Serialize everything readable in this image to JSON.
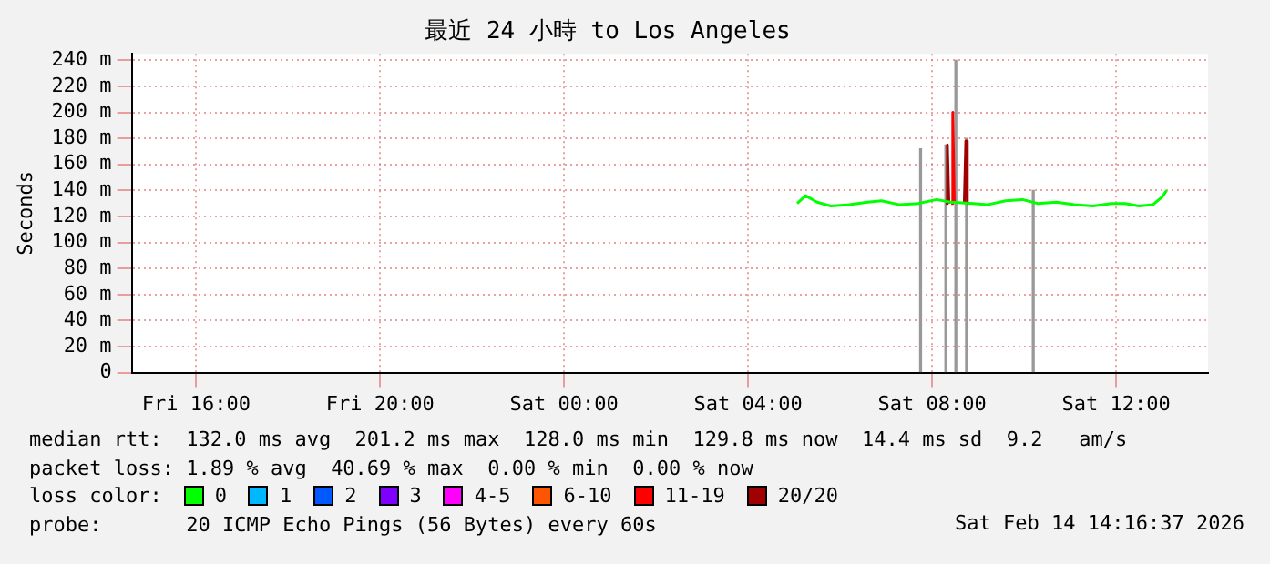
{
  "chart_data": {
    "type": "line",
    "title": "最近 24 小時 to Los Angeles",
    "ylabel": "Seconds",
    "legend_title": "loss color:",
    "xlim": [
      "2026-02-13T14:36",
      "2026-02-14T14:00"
    ],
    "xticks": [
      {
        "value": "2026-02-13T16:00",
        "label": "Fri 16:00"
      },
      {
        "value": "2026-02-13T20:00",
        "label": "Fri 20:00"
      },
      {
        "value": "2026-02-14T00:00",
        "label": "Sat 00:00"
      },
      {
        "value": "2026-02-14T04:00",
        "label": "Sat 04:00"
      },
      {
        "value": "2026-02-14T08:00",
        "label": "Sat 08:00"
      },
      {
        "value": "2026-02-14T12:00",
        "label": "Sat 12:00"
      }
    ],
    "ylim": [
      0,
      245
    ],
    "yticks": [
      0,
      {
        "value": 20,
        "label": "20 m"
      },
      {
        "value": 40,
        "label": "40 m"
      },
      {
        "value": 60,
        "label": "60 m"
      },
      {
        "value": 80,
        "label": "80 m"
      },
      {
        "value": 100,
        "label": "100 m"
      },
      {
        "value": 120,
        "label": "120 m"
      },
      {
        "value": 140,
        "label": "140 m"
      },
      {
        "value": 160,
        "label": "160 m"
      },
      {
        "value": 180,
        "label": "180 m"
      },
      {
        "value": 200,
        "label": "200 m"
      },
      {
        "value": 220,
        "label": "220 m"
      },
      {
        "value": 240,
        "label": "240 m"
      }
    ],
    "grid": true,
    "legend": "bottom",
    "marker": "none",
    "line_style": "solid",
    "series": [
      {
        "type": "bar",
        "color": "#999999",
        "x": [
          "2026-02-14T07:45",
          "2026-02-14T08:18",
          "2026-02-14T08:31",
          "2026-02-14T08:45",
          "2026-02-14T10:12"
        ],
        "values": [
          172,
          175,
          240,
          180,
          140
        ]
      },
      {
        "name": "0",
        "color": "#00ff00",
        "x": [
          "2026-02-14T05:04",
          "2026-02-14T05:15",
          "2026-02-14T05:30",
          "2026-02-14T05:48",
          "2026-02-14T06:12",
          "2026-02-14T06:36",
          "2026-02-14T06:54",
          "2026-02-14T07:18",
          "2026-02-14T07:42",
          "2026-02-14T08:06",
          "2026-02-14T08:24",
          "2026-02-14T08:54",
          "2026-02-14T09:12",
          "2026-02-14T09:36",
          "2026-02-14T09:58",
          "2026-02-14T10:18",
          "2026-02-14T10:42",
          "2026-02-14T11:06",
          "2026-02-14T11:30",
          "2026-02-14T11:54",
          "2026-02-14T12:12",
          "2026-02-14T12:30",
          "2026-02-14T12:48",
          "2026-02-14T13:00",
          "2026-02-14T13:06"
        ],
        "values": [
          130,
          136,
          131,
          128,
          129,
          131,
          132,
          129,
          130,
          133,
          131,
          130,
          129,
          132,
          133,
          130,
          131,
          129,
          128,
          130,
          130,
          128,
          129,
          135,
          140
        ]
      },
      {
        "name": "1",
        "color": "#00b8ff"
      },
      {
        "name": "2",
        "color": "#0059ff"
      },
      {
        "name": "3",
        "color": "#7e00ff"
      },
      {
        "name": "4-5",
        "color": "#ff00ff"
      },
      {
        "name": "6-10",
        "color": "#ff5500"
      },
      {
        "name": "11-19",
        "color": "#ff0000",
        "x": [
          "2026-02-14T08:25",
          "2026-02-14T08:27",
          "2026-02-14T08:29"
        ],
        "values": [
          130,
          200,
          130
        ]
      },
      {
        "name": "20/20",
        "color": "#a10000",
        "x": [
          "2026-02-14T08:18",
          "2026-02-14T08:20",
          "2026-02-14T08:22",
          "2026-02-14T08:32",
          "2026-02-14T08:42",
          "2026-02-14T08:44",
          "2026-02-14T08:46"
        ],
        "values": [
          130,
          175,
          130,
          null,
          130,
          178,
          130
        ]
      }
    ],
    "annotations": [
      "median rtt:  132.0 ms avg  201.2 ms max  128.0 ms min  129.8 ms now  14.4 ms sd  9.2   am/s",
      "packet loss: 1.89 % avg  40.69 % max  0.00 % min  0.00 % now",
      "probe:       20 ICMP Echo Pings (56 Bytes) every 60s",
      "Sat Feb 14 14:16:37 2026"
    ]
  }
}
